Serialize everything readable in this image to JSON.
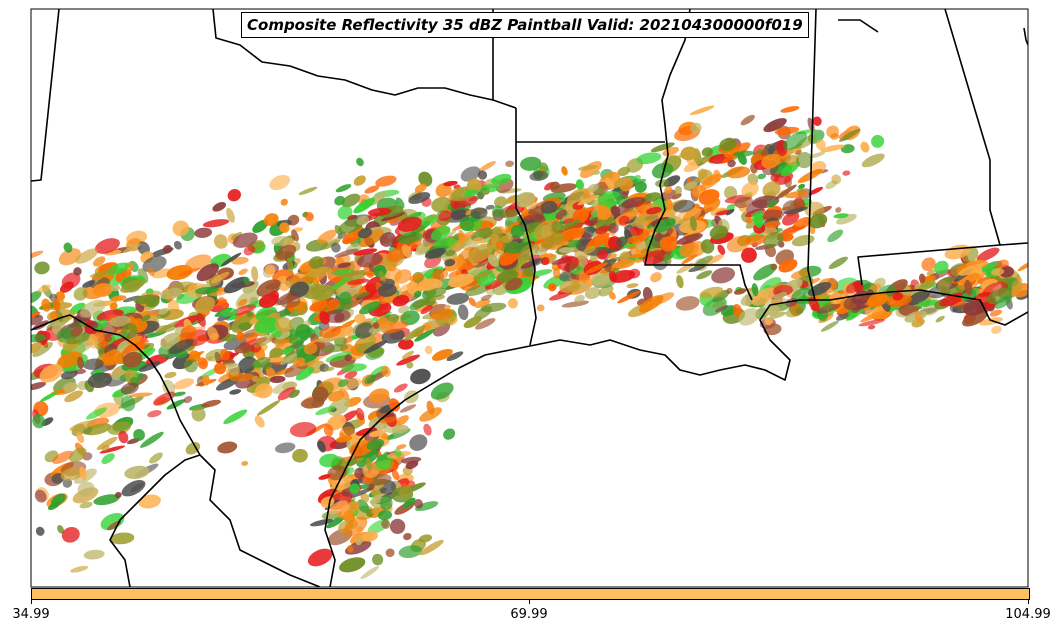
{
  "title": "Composite Reflectivity 35 dBZ Paintball Valid: 202104300000f019",
  "colorbar": {
    "color": "#fdbf62",
    "ticks": [
      "34.99",
      "69.99",
      "104.99"
    ]
  },
  "map": {
    "background": "#ffffff",
    "border_color": "#000000",
    "paintball_colors": [
      "#e6191a",
      "#f57c00",
      "#fb8c1c",
      "#fdae4b",
      "#2ca02c",
      "#32d232",
      "#6b8e23",
      "#9b9b2a",
      "#8b3a3a",
      "#a0522d",
      "#4d4d4d",
      "#bdb76b",
      "#ff6600",
      "#c8a032"
    ]
  }
}
